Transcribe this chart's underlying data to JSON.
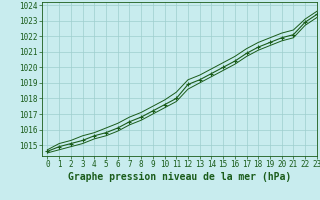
{
  "title": "Graphe pression niveau de la mer (hPa)",
  "background_color": "#c8ecee",
  "grid_color": "#9ecece",
  "line_color": "#1a5c1a",
  "marker_color": "#1a5c1a",
  "xlim": [
    -0.5,
    23
  ],
  "ylim": [
    1014.3,
    1024.2
  ],
  "yticks": [
    1015,
    1016,
    1017,
    1018,
    1019,
    1020,
    1021,
    1022,
    1023,
    1024
  ],
  "xticks": [
    0,
    1,
    2,
    3,
    4,
    5,
    6,
    7,
    8,
    9,
    10,
    11,
    12,
    13,
    14,
    15,
    16,
    17,
    18,
    19,
    20,
    21,
    22,
    23
  ],
  "hours": [
    0,
    1,
    2,
    3,
    4,
    5,
    6,
    7,
    8,
    9,
    10,
    11,
    12,
    13,
    14,
    15,
    16,
    17,
    18,
    19,
    20,
    21,
    22,
    23
  ],
  "pressure_main": [
    1014.6,
    1014.9,
    1015.1,
    1015.3,
    1015.6,
    1015.8,
    1016.1,
    1016.5,
    1016.8,
    1017.2,
    1017.6,
    1018.0,
    1018.9,
    1019.2,
    1019.6,
    1020.0,
    1020.4,
    1020.9,
    1021.3,
    1021.6,
    1021.9,
    1022.1,
    1022.9,
    1023.4
  ],
  "pressure_upper": [
    1014.7,
    1015.1,
    1015.3,
    1015.6,
    1015.8,
    1016.1,
    1016.4,
    1016.8,
    1017.1,
    1017.5,
    1017.9,
    1018.4,
    1019.2,
    1019.5,
    1019.9,
    1020.3,
    1020.7,
    1021.2,
    1021.6,
    1021.9,
    1022.2,
    1022.4,
    1023.1,
    1023.6
  ],
  "pressure_lower": [
    1014.5,
    1014.7,
    1014.9,
    1015.1,
    1015.4,
    1015.6,
    1015.9,
    1016.3,
    1016.6,
    1017.0,
    1017.4,
    1017.8,
    1018.6,
    1019.0,
    1019.4,
    1019.8,
    1020.2,
    1020.7,
    1021.1,
    1021.4,
    1021.7,
    1021.9,
    1022.7,
    1023.2
  ],
  "title_fontsize": 7,
  "tick_fontsize": 5.5
}
